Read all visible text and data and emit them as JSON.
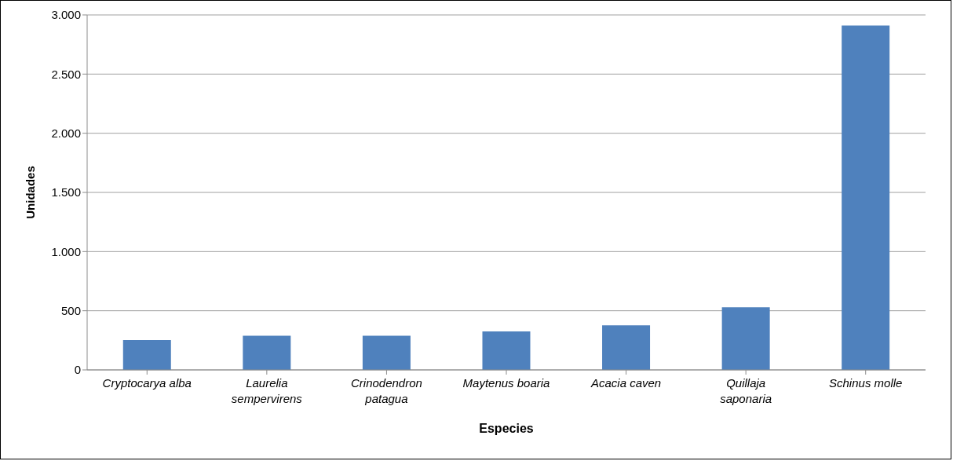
{
  "chart_data": {
    "type": "bar",
    "xlabel": "Especies",
    "ylabel": "Unidades",
    "categories": [
      "Cryptocarya alba",
      "Laurelia sempervirens",
      "Crinodendron patagua",
      "Maytenus boaria",
      "Acacia caven",
      "Quillaja saponaria",
      "Schinus molle"
    ],
    "values": [
      253,
      289,
      289,
      326,
      376,
      529,
      2910
    ],
    "color": "#4f81bd",
    "ylim": [
      0,
      3000
    ],
    "yticks": [
      0,
      {
        "value": 500,
        "label": "500"
      },
      {
        "value": 1000,
        "label": "1.000"
      },
      {
        "value": 1500,
        "label": "1.500"
      },
      {
        "value": 2000,
        "label": "2.000"
      },
      {
        "value": 2500,
        "label": "2.500"
      },
      {
        "value": 3000,
        "label": "3.000"
      }
    ],
    "grid": "y",
    "legend": false
  }
}
